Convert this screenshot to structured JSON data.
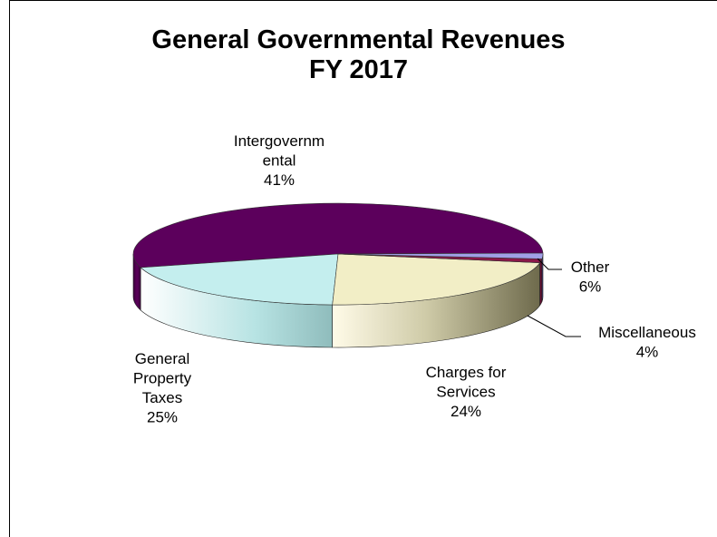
{
  "chart_data": {
    "type": "pie",
    "title": [
      "General Governmental Revenues",
      "FY 2017"
    ],
    "slices": [
      {
        "name": "Intergovernmental",
        "label": [
          "Intergovernm",
          "ental",
          "41%"
        ],
        "value": 41,
        "color": "#5c005c"
      },
      {
        "name": "General Property Taxes",
        "label": [
          "General",
          "Property",
          "Taxes",
          "25%"
        ],
        "value": 25,
        "color": "#c4eeee"
      },
      {
        "name": "Charges for Services",
        "label": [
          "Charges for",
          "Services",
          "24%"
        ],
        "value": 24,
        "color": "#f2eec6"
      },
      {
        "name": "Miscellaneous",
        "label": [
          "Miscellaneous",
          "4%"
        ],
        "value": 4,
        "color": "#8a1848"
      },
      {
        "name": "Other",
        "label": [
          "Other",
          "6%"
        ],
        "value": 6,
        "color": "#a0a0e6"
      }
    ]
  }
}
